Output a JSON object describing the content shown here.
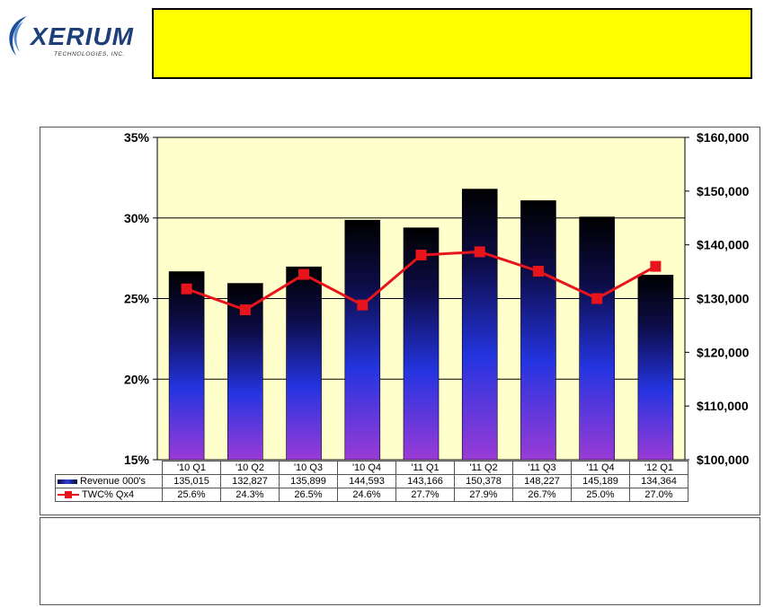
{
  "logo": {
    "name": "XERIUM",
    "tagline": "TECHNOLOGIES, INC."
  },
  "colors": {
    "title_fill": "#ffff00",
    "plot_background": "#ffffcc",
    "bar_top": "#000000",
    "bar_mid": "#2434e0",
    "bar_bottom": "#9a3bd6",
    "line_color": "#e8141b"
  },
  "chart_data": {
    "type": "bar",
    "categories": [
      "'10 Q1",
      "'10 Q2",
      "'10 Q3",
      "'10 Q4",
      "'11 Q1",
      "'11 Q2",
      "'11 Q3",
      "'11 Q4",
      "'12 Q1"
    ],
    "series": [
      {
        "name": "Revenue 000's",
        "kind": "bar",
        "axis": "right",
        "values": [
          135015,
          132827,
          135899,
          144593,
          143166,
          150378,
          148227,
          145189,
          134364
        ],
        "labels": [
          "135,015",
          "132,827",
          "135,899",
          "144,593",
          "143,166",
          "150,378",
          "148,227",
          "145,189",
          "134,364"
        ]
      },
      {
        "name": "TWC% Qx4",
        "kind": "line",
        "axis": "left",
        "values": [
          25.6,
          24.3,
          26.5,
          24.6,
          27.7,
          27.9,
          26.7,
          25.0,
          27.0
        ],
        "labels": [
          "25.6%",
          "24.3%",
          "26.5%",
          "24.6%",
          "27.7%",
          "27.9%",
          "26.7%",
          "25.0%",
          "27.0%"
        ]
      }
    ],
    "left_axis": {
      "min": 15,
      "max": 35,
      "step": 5,
      "ticks": [
        "15%",
        "20%",
        "25%",
        "30%",
        "35%"
      ]
    },
    "right_axis": {
      "min": 100000,
      "max": 160000,
      "step": 10000,
      "ticks": [
        "$100,000",
        "$110,000",
        "$120,000",
        "$130,000",
        "$140,000",
        "$150,000",
        "$160,000"
      ]
    },
    "grid": true,
    "legend": "data-table"
  }
}
